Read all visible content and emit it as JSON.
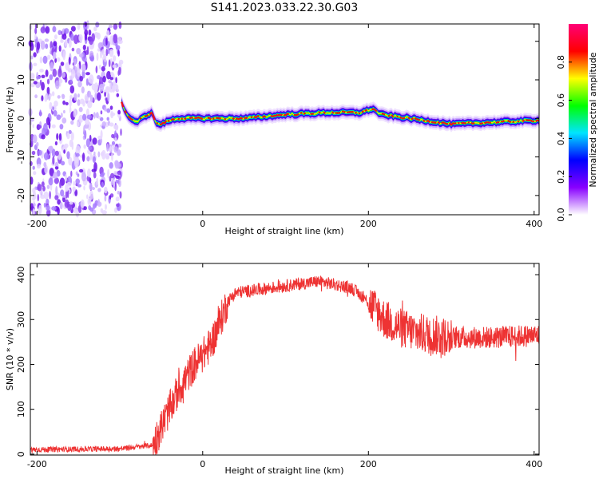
{
  "title": "S141.2023.033.22.30.G03",
  "chart_data": [
    {
      "type": "heatmap",
      "xlabel": "Height of straight line (km)",
      "ylabel": "Frequency (Hz)",
      "xlim": [
        -208,
        406
      ],
      "ylim": [
        -25,
        24.5
      ],
      "x_ticks": [
        -200,
        0,
        200,
        400
      ],
      "y_ticks": [
        -20,
        -10,
        0,
        10,
        20
      ],
      "noise_region_x": [
        -208,
        -98
      ],
      "ridge": {
        "x": [
          -98,
          -90,
          -80,
          -70,
          -62,
          -55,
          -50,
          -40,
          -30,
          -20,
          0,
          50,
          100,
          150,
          190,
          205,
          215,
          250,
          300,
          350,
          406
        ],
        "y": [
          4,
          0.5,
          -1,
          0.5,
          1.5,
          -1.5,
          -1.5,
          -0.5,
          0,
          0,
          0,
          0,
          1,
          1.5,
          1.5,
          2.5,
          1,
          0,
          -1.5,
          -1,
          -0.5
        ]
      },
      "colorbar": {
        "label": "Normalized spectral amplitude",
        "range": [
          0.0,
          1.0
        ],
        "ticks": [
          "0.0",
          "0.2",
          "0.4",
          "0.6",
          "0.8"
        ],
        "tick_values": [
          0.0,
          0.2,
          0.4,
          0.6,
          0.8
        ],
        "colors": [
          "#ffffff",
          "#8800ff",
          "#0000ff",
          "#00e5ff",
          "#00ff00",
          "#ffff00",
          "#ff0000",
          "#ff0077"
        ]
      }
    },
    {
      "type": "line",
      "xlabel": "Height of straight line (km)",
      "ylabel": "SNR (10 * v/v)",
      "xlim": [
        -208,
        406
      ],
      "ylim": [
        -2,
        425
      ],
      "x_ticks": [
        -200,
        0,
        200,
        400
      ],
      "y_ticks": [
        0,
        100,
        200,
        300,
        400
      ],
      "color": "#ee3333",
      "series": [
        {
          "x": [
            -208,
            -100,
            -60,
            -50,
            -40,
            -30,
            -20,
            -10,
            0,
            10,
            20,
            30,
            40,
            60,
            100,
            140,
            180,
            200,
            220,
            240,
            260,
            300,
            350,
            406
          ],
          "y": [
            10,
            12,
            20,
            60,
            100,
            140,
            170,
            200,
            220,
            245,
            290,
            340,
            360,
            365,
            375,
            385,
            370,
            340,
            300,
            280,
            270,
            260,
            260,
            265
          ]
        }
      ]
    }
  ]
}
